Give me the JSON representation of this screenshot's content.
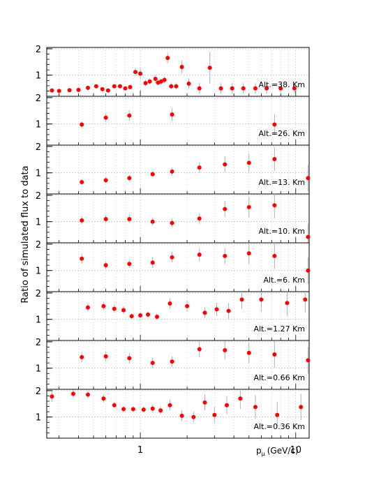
{
  "ylabel": "Ratio of simulated flux to data",
  "xlabel": "p",
  "xlabel_sub": "μ",
  "xlabel_unit": "(GeV/c)",
  "x_tick_labels": [
    {
      "value": 1,
      "label": "1"
    },
    {
      "value": 10,
      "label": "10"
    }
  ],
  "y_tick_labels": [
    "1",
    "2"
  ],
  "colors": {
    "marker": "#ff0000",
    "error_bar": "#b0b0b0",
    "axis": "#000000",
    "grid": "#b4b4b4"
  },
  "chart_data": {
    "type": "scatter",
    "x_scale": "log",
    "xlim": [
      0.25,
      12.2
    ],
    "ylim": [
      0.2,
      2.05
    ],
    "y_ticks": [
      1,
      2
    ],
    "grid": true,
    "panels": [
      {
        "label": "Alt.=38. Km",
        "x": [
          0.27,
          0.3,
          0.35,
          0.4,
          0.46,
          0.52,
          0.57,
          0.62,
          0.68,
          0.74,
          0.8,
          0.86,
          0.93,
          1.0,
          1.08,
          1.15,
          1.25,
          1.3,
          1.36,
          1.43,
          1.5,
          1.58,
          1.7,
          1.85,
          2.05,
          2.4,
          2.8,
          3.3,
          3.9,
          4.6,
          5.5,
          6.5,
          8.0,
          9.8
        ],
        "y": [
          0.42,
          0.4,
          0.43,
          0.44,
          0.52,
          0.58,
          0.47,
          0.42,
          0.58,
          0.58,
          0.5,
          0.55,
          1.12,
          1.06,
          0.7,
          0.76,
          0.86,
          0.72,
          0.76,
          0.82,
          1.65,
          0.58,
          0.58,
          1.31,
          0.68,
          0.5,
          1.28,
          0.5,
          0.5,
          0.5,
          0.5,
          0.5,
          0.5,
          0.5
        ],
        "err": [
          0.05,
          0.05,
          0.05,
          0.05,
          0.08,
          0.08,
          0.06,
          0.06,
          0.08,
          0.08,
          0.08,
          0.08,
          0.15,
          0.2,
          0.12,
          0.12,
          0.15,
          0.12,
          0.12,
          0.12,
          0.2,
          0.12,
          0.12,
          0.25,
          0.2,
          0.2,
          0.6,
          0.2,
          0.2,
          0.2,
          0.2,
          0.2,
          0.2,
          0.2
        ]
      },
      {
        "label": "Alt.=26. Km",
        "x": [
          0.42,
          0.6,
          0.85,
          1.6,
          7.3
        ],
        "y": [
          0.98,
          1.24,
          1.32,
          1.36,
          0.98
        ],
        "err": [
          0.12,
          0.15,
          0.2,
          0.25,
          0.4
        ]
      },
      {
        "label": "Alt.=13. Km",
        "x": [
          0.42,
          0.6,
          0.85,
          1.2,
          1.6,
          2.4,
          3.5,
          5.0,
          7.3,
          12.0
        ],
        "y": [
          0.65,
          0.72,
          0.8,
          0.95,
          1.05,
          1.2,
          1.32,
          1.38,
          1.52,
          0.8
        ],
        "err": [
          0.12,
          0.12,
          0.12,
          0.12,
          0.15,
          0.2,
          0.3,
          0.35,
          0.45,
          0.5
        ]
      },
      {
        "label": "Alt.=10. Km",
        "x": [
          0.42,
          0.6,
          0.85,
          1.2,
          1.6,
          2.4,
          3.5,
          5.0,
          7.3,
          12.0
        ],
        "y": [
          1.05,
          1.1,
          1.1,
          1.0,
          0.95,
          1.12,
          1.48,
          1.55,
          1.62,
          0.42
        ],
        "err": [
          0.15,
          0.15,
          0.15,
          0.15,
          0.15,
          0.2,
          0.3,
          0.4,
          0.5,
          0.5
        ]
      },
      {
        "label": "Alt.=6. Km",
        "x": [
          0.42,
          0.6,
          0.85,
          1.2,
          1.6,
          2.4,
          3.5,
          5.0,
          7.3,
          12.0
        ],
        "y": [
          1.45,
          1.2,
          1.25,
          1.3,
          1.5,
          1.6,
          1.55,
          1.65,
          1.55,
          1.0
        ],
        "err": [
          0.2,
          0.15,
          0.15,
          0.2,
          0.2,
          0.25,
          0.3,
          0.4,
          0.5,
          0.5
        ]
      },
      {
        "label": "Alt.=1.27 Km",
        "x": [
          0.46,
          0.58,
          0.68,
          0.78,
          0.88,
          1.0,
          1.12,
          1.28,
          1.55,
          2.0,
          2.6,
          3.1,
          3.7,
          4.5,
          6.0,
          8.8,
          11.5
        ],
        "y": [
          1.45,
          1.5,
          1.4,
          1.35,
          1.12,
          1.15,
          1.18,
          1.1,
          1.6,
          1.5,
          1.25,
          1.38,
          1.32,
          1.75,
          1.75,
          1.62,
          1.75
        ],
        "err": [
          0.15,
          0.15,
          0.15,
          0.15,
          0.1,
          0.12,
          0.12,
          0.12,
          0.2,
          0.2,
          0.2,
          0.25,
          0.3,
          0.35,
          0.45,
          0.5,
          0.5
        ]
      },
      {
        "label": "Alt.=0.66 Km",
        "x": [
          0.42,
          0.6,
          0.85,
          1.2,
          1.6,
          2.4,
          3.5,
          5.0,
          7.3,
          12.0
        ],
        "y": [
          1.42,
          1.45,
          1.38,
          1.2,
          1.25,
          1.72,
          1.68,
          1.58,
          1.52,
          1.3
        ],
        "err": [
          0.2,
          0.2,
          0.2,
          0.2,
          0.2,
          0.3,
          0.35,
          0.4,
          0.5,
          0.5
        ]
      },
      {
        "label": "Alt.=0.36 Km",
        "x": [
          0.27,
          0.37,
          0.46,
          0.58,
          0.68,
          0.78,
          0.9,
          1.05,
          1.2,
          1.35,
          1.55,
          1.85,
          2.2,
          2.6,
          3.0,
          3.6,
          4.4,
          5.5,
          7.6,
          10.8
        ],
        "y": [
          1.78,
          1.88,
          1.85,
          1.7,
          1.45,
          1.3,
          1.3,
          1.28,
          1.32,
          1.25,
          1.45,
          1.05,
          1.0,
          1.55,
          1.08,
          1.45,
          1.7,
          1.38,
          1.08,
          1.38
        ],
        "err": [
          0.2,
          0.15,
          0.15,
          0.15,
          0.12,
          0.12,
          0.12,
          0.12,
          0.15,
          0.15,
          0.2,
          0.2,
          0.2,
          0.3,
          0.3,
          0.35,
          0.4,
          0.45,
          0.5,
          0.5
        ]
      }
    ]
  }
}
